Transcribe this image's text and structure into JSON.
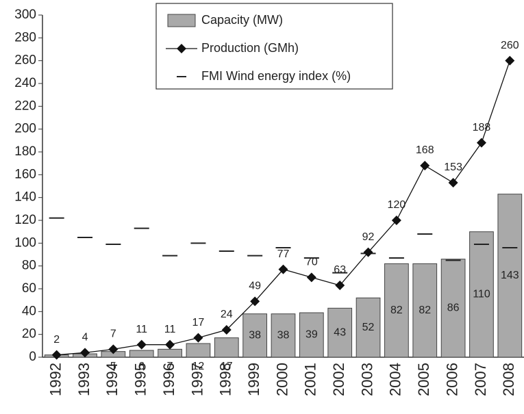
{
  "chart_data": {
    "type": "bar_line",
    "categories": [
      "1992",
      "1993",
      "1994",
      "1995",
      "1996",
      "1997",
      "1998",
      "1999",
      "2000",
      "2001",
      "2002",
      "2003",
      "2004",
      "2005",
      "2006",
      "2007",
      "2008"
    ],
    "series": [
      {
        "name": "Capacity (MW)",
        "kind": "bar",
        "color": "#a9a9a9",
        "values": [
          2,
          3,
          5,
          6,
          7,
          12,
          17,
          38,
          38,
          39,
          43,
          52,
          82,
          82,
          86,
          110,
          143
        ],
        "value_labels": [
          null,
          null,
          "5",
          "6",
          "7",
          "12",
          "17",
          "38",
          "38",
          "39",
          "43",
          "52",
          "82",
          "82",
          "86",
          "110",
          "143"
        ]
      },
      {
        "name": "Production (GMh)",
        "kind": "line",
        "color": "#111111",
        "values": [
          2,
          4,
          7,
          11,
          11,
          17,
          24,
          49,
          77,
          70,
          63,
          92,
          120,
          168,
          153,
          188,
          260
        ]
      },
      {
        "name": "FMI Wind energy index (%)",
        "kind": "dash",
        "color": "#222222",
        "values": [
          122,
          105,
          99,
          113,
          89,
          100,
          93,
          89,
          96,
          87,
          74,
          91,
          87,
          108,
          85,
          99,
          96
        ]
      }
    ],
    "ylim": [
      0,
      300
    ],
    "yticks": [
      0,
      20,
      40,
      60,
      80,
      100,
      120,
      140,
      160,
      180,
      200,
      220,
      240,
      260,
      280,
      300
    ],
    "grid": false
  }
}
